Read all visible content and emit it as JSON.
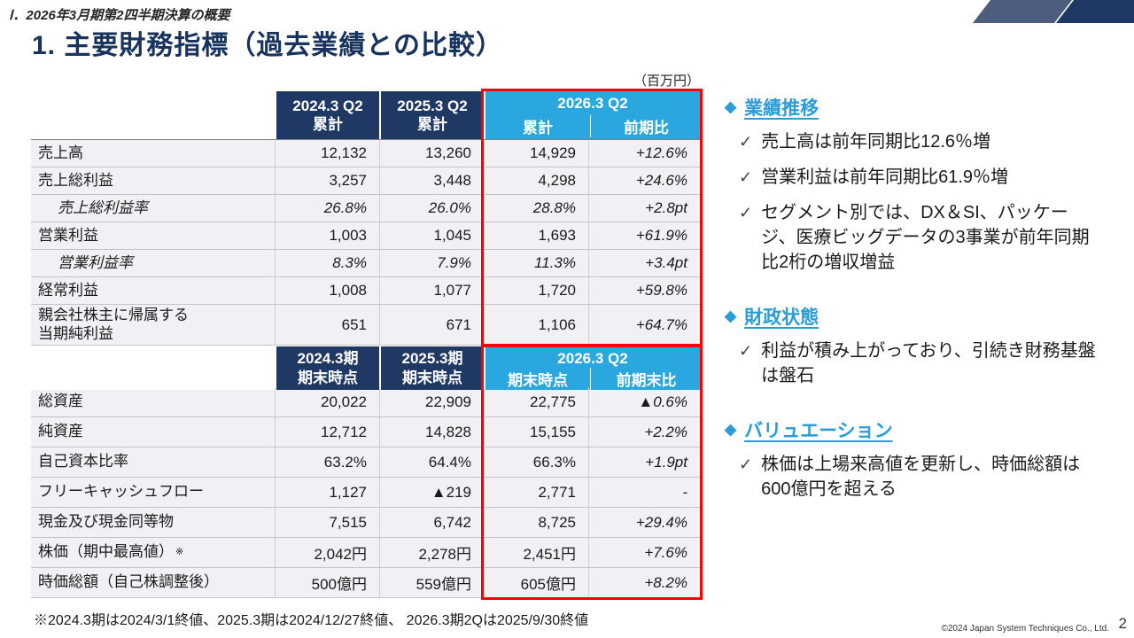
{
  "page": {
    "section_label": "Ⅰ．2026年3月期第2四半期決算の概要",
    "title": "1. 主要財務指標（過去業績との比較）",
    "unit_label": "（百万円）",
    "footnote": "※2024.3期は2024/3/1終値、2025.3期は2024/12/27終値、 2026.3期2Qは2025/9/30終値",
    "copyright": "©2024 Japan System Techniques Co., Ltd.",
    "page_number": "2"
  },
  "colors": {
    "navy": "#1F3864",
    "cyan": "#2BA7E0",
    "accent_blue": "#2B9CD8",
    "negative_red": "#E60012",
    "highlight_border": "#FF0000"
  },
  "pl_table": {
    "col1_header": {
      "line1": "2024.3 Q2",
      "line2": "累計"
    },
    "col2_header": {
      "line1": "2025.3 Q2",
      "line2": "累計"
    },
    "group_header": "2026.3 Q2",
    "sub_header_a": "累計",
    "sub_header_b": "前期比",
    "rows": [
      {
        "label": "売上高",
        "v1": "12,132",
        "v2": "13,260",
        "v3": "14,929",
        "chg": "+12.6%"
      },
      {
        "label": "売上総利益",
        "v1": "3,257",
        "v2": "3,448",
        "v3": "4,298",
        "chg": "+24.6%"
      },
      {
        "label": "売上総利益率",
        "v1": "26.8%",
        "v2": "26.0%",
        "v3": "28.8%",
        "chg": "+2.8pt"
      },
      {
        "label": "営業利益",
        "v1": "1,003",
        "v2": "1,045",
        "v3": "1,693",
        "chg": "+61.9%"
      },
      {
        "label": "営業利益率",
        "v1": "8.3%",
        "v2": "7.9%",
        "v3": "11.3%",
        "chg": "+3.4pt"
      },
      {
        "label": "経常利益",
        "v1": "1,008",
        "v2": "1,077",
        "v3": "1,720",
        "chg": "+59.8%"
      },
      {
        "label": "親会社株主に帰属する\n当期純利益",
        "v1": "651",
        "v2": "671",
        "v3": "1,106",
        "chg": "+64.7%"
      }
    ]
  },
  "bs_table": {
    "col1_header": {
      "line1": "2024.3期",
      "line2": "期末時点"
    },
    "col2_header": {
      "line1": "2025.3期",
      "line2": "期末時点"
    },
    "group_header": "2026.3 Q2",
    "sub_header_a": "期末時点",
    "sub_header_b": "前期末比",
    "rows": [
      {
        "label": "総資産",
        "v1": "20,022",
        "v2": "22,909",
        "v3": "22,775",
        "chg": "▲0.6%"
      },
      {
        "label": "純資産",
        "v1": "12,712",
        "v2": "14,828",
        "v3": "15,155",
        "chg": "+2.2%"
      },
      {
        "label": "自己資本比率",
        "v1": "63.2%",
        "v2": "64.4%",
        "v3": "66.3%",
        "chg": "+1.9pt"
      },
      {
        "label": "フリーキャッシュフロー",
        "v1": "1,127",
        "v2": "▲219",
        "v3": "2,771",
        "chg": "-"
      },
      {
        "label": "現金及び現金同等物",
        "v1": "7,515",
        "v2": "6,742",
        "v3": "8,725",
        "chg": "+29.4%"
      },
      {
        "label": "株価（期中最高値）",
        "label_sup": "※",
        "v1": "2,042円",
        "v2": "2,278円",
        "v3": "2,451円",
        "chg": "+7.6%"
      },
      {
        "label": "時価総額（自己株調整後）",
        "v1": "500億円",
        "v2": "559億円",
        "v3": "605億円",
        "chg": "+8.2%"
      }
    ]
  },
  "sidebar": {
    "sections": [
      {
        "heading": "業績推移",
        "bullets": [
          "売上高は前年同期比12.6％増",
          "営業利益は前年同期比61.9％増",
          "セグメント別では、DX＆SI、パッケージ、医療ビッグデータの3事業が前年同期比2桁の増収増益"
        ]
      },
      {
        "heading": "財政状態",
        "bullets": [
          "利益が積み上がっており、引続き財務基盤は盤石"
        ]
      },
      {
        "heading": "バリュエーション",
        "bullets": [
          "株価は上場来高値を更新し、時価総額は600億円を超える"
        ]
      }
    ]
  }
}
